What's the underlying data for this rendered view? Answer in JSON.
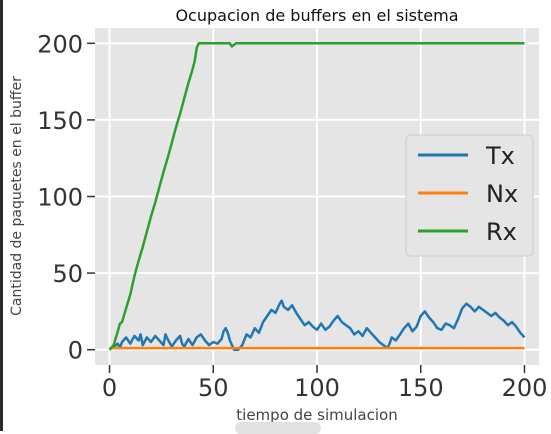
{
  "chart_data": {
    "type": "line",
    "title": "Ocupacion de buffers en el sistema",
    "xlabel": "tiempo de simulacion",
    "ylabel": "Cantidad de paquetes en el buffer",
    "xlim": [
      -7,
      207
    ],
    "ylim": [
      -10,
      210
    ],
    "xticks": [
      0,
      50,
      100,
      150,
      200
    ],
    "yticks": [
      0,
      50,
      100,
      150,
      200
    ],
    "grid": true,
    "legend": "center-right",
    "series": [
      {
        "name": "Tx",
        "color": "#1f77b4",
        "x": [
          0,
          2,
          4,
          5,
          6,
          8,
          10,
          12,
          14,
          15,
          16,
          18,
          20,
          22,
          24,
          26,
          27,
          28,
          30,
          32,
          34,
          35,
          36,
          38,
          40,
          42,
          44,
          46,
          48,
          50,
          52,
          54,
          55,
          56,
          57,
          58,
          60,
          62,
          64,
          66,
          68,
          70,
          72,
          74,
          76,
          78,
          80,
          82,
          83,
          84,
          86,
          88,
          90,
          92,
          94,
          96,
          98,
          100,
          102,
          104,
          106,
          108,
          110,
          112,
          114,
          116,
          118,
          120,
          122,
          124,
          126,
          128,
          130,
          132,
          134,
          135,
          136,
          138,
          140,
          142,
          144,
          146,
          148,
          150,
          152,
          154,
          156,
          158,
          160,
          162,
          164,
          166,
          168,
          170,
          172,
          174,
          176,
          178,
          180,
          182,
          184,
          186,
          188,
          190,
          192,
          194,
          196,
          198,
          200
        ],
        "y": [
          0,
          2,
          4,
          1,
          5,
          8,
          4,
          9,
          6,
          10,
          3,
          8,
          5,
          9,
          6,
          3,
          10,
          7,
          2,
          6,
          9,
          4,
          2,
          7,
          3,
          8,
          10,
          6,
          3,
          5,
          4,
          7,
          12,
          14,
          11,
          6,
          0,
          0,
          3,
          10,
          8,
          14,
          11,
          18,
          22,
          26,
          24,
          30,
          32,
          28,
          26,
          29,
          24,
          20,
          16,
          18,
          15,
          13,
          17,
          13,
          15,
          19,
          22,
          18,
          16,
          14,
          10,
          12,
          9,
          14,
          11,
          8,
          5,
          3,
          1,
          4,
          8,
          6,
          10,
          14,
          17,
          12,
          15,
          22,
          25,
          21,
          18,
          14,
          13,
          17,
          16,
          14,
          20,
          27,
          30,
          28,
          25,
          28,
          26,
          24,
          22,
          24,
          21,
          19,
          16,
          18,
          15,
          11,
          8
        ]
      },
      {
        "name": "Nx",
        "color": "#ff7f0e",
        "x": [
          0,
          200
        ],
        "y": [
          1,
          1
        ]
      },
      {
        "name": "Rx",
        "color": "#2ca02c",
        "x": [
          0,
          2,
          4,
          5,
          6,
          8,
          10,
          12,
          14,
          16,
          18,
          20,
          22,
          24,
          26,
          28,
          30,
          32,
          34,
          36,
          38,
          40,
          41,
          42,
          43,
          58,
          59,
          60,
          61,
          200
        ],
        "y": [
          0,
          3,
          12,
          17,
          18,
          27,
          36,
          48,
          58,
          67,
          77,
          87,
          96,
          106,
          116,
          125,
          135,
          145,
          154,
          164,
          174,
          183,
          188,
          197,
          200,
          200,
          198,
          199,
          200,
          200
        ]
      }
    ]
  }
}
